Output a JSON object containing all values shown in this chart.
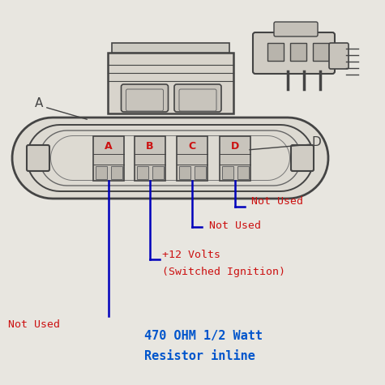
{
  "bg_color": "#e8e6e0",
  "draw_color": "#444444",
  "line_color": "#0000bb",
  "text_color_red": "#cc1111",
  "text_color_blue": "#0055cc",
  "connector_pins": [
    "A",
    "B",
    "C",
    "D"
  ],
  "pin_labels_color": "#cc1111",
  "bottom_text_line1": "470 OHM 1/2 Watt",
  "bottom_text_line2": "Resistor inline",
  "label_A": "A",
  "label_D": "D",
  "note_not_used": "Not Used",
  "note_12v_1": "+12 Volts",
  "note_12v_2": "(Switched Ignition)"
}
